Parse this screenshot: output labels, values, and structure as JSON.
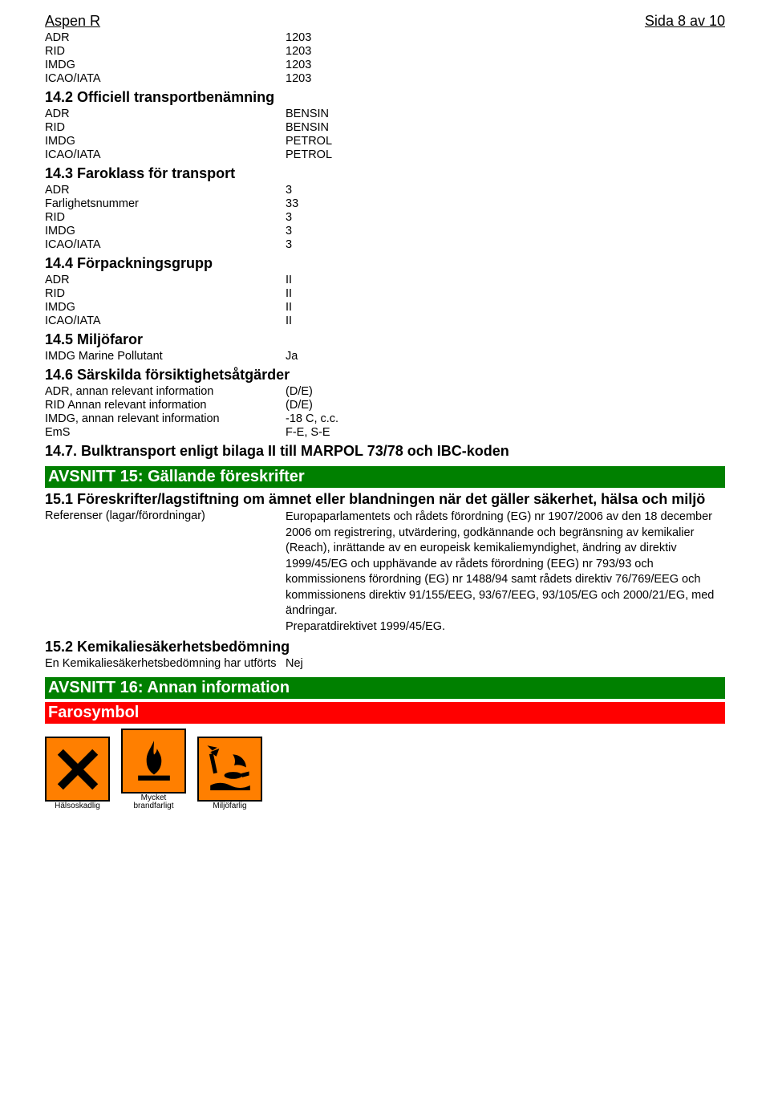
{
  "header": {
    "product": "Aspen R",
    "page_ref": "Sida 8 av 10"
  },
  "un_numbers": {
    "rows": [
      {
        "k": "ADR",
        "v": "1203"
      },
      {
        "k": "RID",
        "v": "1203"
      },
      {
        "k": "IMDG",
        "v": "1203"
      },
      {
        "k": "ICAO/IATA",
        "v": "1203"
      }
    ]
  },
  "s14_2": {
    "title": "14.2 Officiell transportbenämning",
    "rows": [
      {
        "k": "ADR",
        "v": "BENSIN"
      },
      {
        "k": "RID",
        "v": "BENSIN"
      },
      {
        "k": "IMDG",
        "v": "PETROL"
      },
      {
        "k": "ICAO/IATA",
        "v": "PETROL"
      }
    ]
  },
  "s14_3": {
    "title": "14.3 Faroklass för transport",
    "rows": [
      {
        "k": "ADR",
        "v": "3"
      },
      {
        "k": "Farlighetsnummer",
        "v": "33"
      },
      {
        "k": "RID",
        "v": "3"
      },
      {
        "k": "IMDG",
        "v": "3"
      },
      {
        "k": "ICAO/IATA",
        "v": "3"
      }
    ]
  },
  "s14_4": {
    "title": "14.4 Förpackningsgrupp",
    "rows": [
      {
        "k": "ADR",
        "v": "II"
      },
      {
        "k": "RID",
        "v": "II"
      },
      {
        "k": "IMDG",
        "v": "II"
      },
      {
        "k": "ICAO/IATA",
        "v": "II"
      }
    ]
  },
  "s14_5": {
    "title": "14.5 Miljöfaror",
    "rows": [
      {
        "k": "IMDG Marine Pollutant",
        "v": "Ja"
      }
    ]
  },
  "s14_6": {
    "title": "14.6 Särskilda försiktighetsåtgärder",
    "rows": [
      {
        "k": "ADR, annan relevant information",
        "v": "(D/E)"
      },
      {
        "k": "RID Annan relevant information",
        "v": "(D/E)"
      },
      {
        "k": "IMDG, annan relevant information",
        "v": "-18 C, c.c."
      },
      {
        "k": "EmS",
        "v": "F-E, S-E"
      }
    ]
  },
  "s14_7": {
    "title": "14.7. Bulktransport enligt bilaga II till MARPOL 73/78 och IBC-koden"
  },
  "s15": {
    "band": "AVSNITT 15: Gällande föreskrifter",
    "s15_1": {
      "title": "15.1 Föreskrifter/lagstiftning om ämnet eller blandningen när det gäller säkerhet, hälsa och miljö",
      "ref_k": "Referenser (lagar/förordningar)",
      "ref_v": "Europaparlamentets och rådets förordning (EG) nr 1907/2006 av den 18 december 2006 om registrering, utvärdering, godkännande och begränsning av kemikalier (Reach), inrättande av en europeisk kemikaliemyndighet, ändring av direktiv 1999/45/EG och upphävande av rådets förordning (EEG) nr 793/93 och kommissionens förordning (EG) nr 1488/94 samt rådets direktiv 76/769/EEG och kommissionens direktiv 91/155/EEG, 93/67/EEG, 93/105/EG och 2000/21/EG, med ändringar.\nPreparatdirektivet 1999/45/EG."
    },
    "s15_2": {
      "title": "15.2 Kemikaliesäkerhetsbedömning",
      "rows": [
        {
          "k": "En Kemikaliesäkerhetsbedömning har utförts",
          "v": "Nej"
        }
      ]
    }
  },
  "s16": {
    "band": "AVSNITT 16: Annan information",
    "sub_band": "Farosymbol",
    "hazards": [
      {
        "label": "Hälsoskadlig",
        "icon": "harmful"
      },
      {
        "label": "Mycket\nbrandfarligt",
        "icon": "flammable"
      },
      {
        "label": "Miljöfarlig",
        "icon": "environment"
      }
    ]
  },
  "colors": {
    "green": "#008000",
    "red": "#ff0000",
    "orange": "#ff7f00",
    "black": "#000000",
    "white": "#ffffff"
  }
}
